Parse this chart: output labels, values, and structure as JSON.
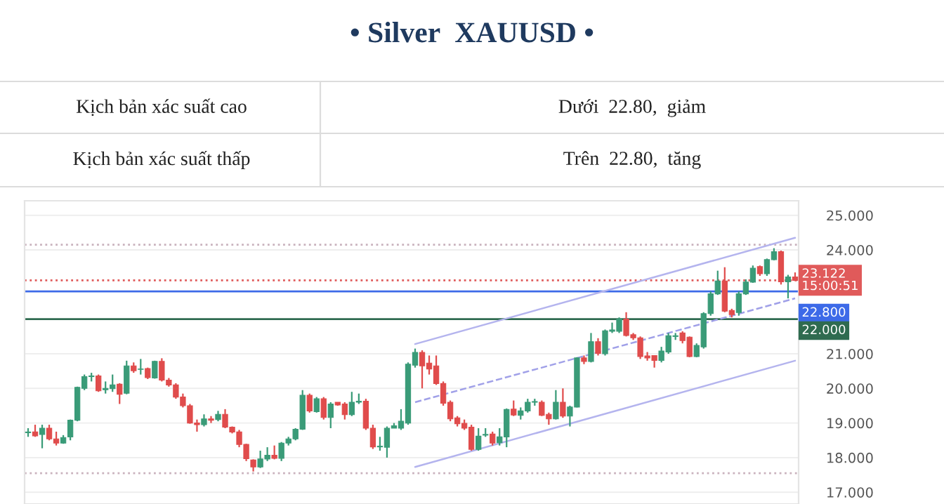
{
  "chart_data": {
    "type": "candlestick",
    "title": "• Silver  XAUUSD •",
    "annotations": [
      "Kịch bản xác suất cao",
      "Dưới  22.80,  giảm",
      "Kịch bản xác suất thấp",
      "Trên  22.80,  tăng"
    ],
    "categories": [
      null,
      null,
      null,
      null,
      null,
      null,
      null,
      null,
      null,
      null,
      null,
      null,
      null,
      null,
      null,
      null,
      null,
      null,
      null,
      null,
      null,
      null,
      null,
      null,
      null,
      null,
      null,
      null,
      null,
      null,
      null,
      null,
      null,
      null,
      null,
      null,
      null,
      null,
      null,
      null,
      null,
      null,
      null,
      null,
      null,
      null,
      null,
      null,
      null,
      null,
      null,
      null,
      null,
      null,
      null,
      null,
      null,
      null,
      null,
      null,
      null,
      null,
      null,
      null,
      null,
      null,
      null,
      null,
      null,
      null,
      null,
      null,
      null,
      null,
      null,
      null,
      null,
      null,
      null,
      null,
      null,
      null,
      null,
      null,
      null,
      null,
      null,
      null,
      null,
      null,
      null,
      null,
      null,
      null,
      null,
      null,
      null,
      null,
      null,
      null,
      null,
      null,
      null,
      null,
      null,
      null,
      null,
      null,
      null,
      null
    ],
    "ohlc": [
      [
        18.72,
        18.85,
        18.6,
        18.74
      ],
      [
        18.74,
        18.95,
        18.6,
        18.63
      ],
      [
        18.67,
        18.95,
        18.27,
        18.85
      ],
      [
        18.85,
        18.95,
        18.5,
        18.54
      ],
      [
        18.54,
        18.75,
        18.35,
        18.42
      ],
      [
        18.42,
        18.65,
        18.4,
        18.58
      ],
      [
        18.6,
        19.1,
        18.5,
        19.08
      ],
      [
        19.08,
        20.05,
        19.05,
        20.03
      ],
      [
        20.0,
        20.4,
        19.95,
        20.34
      ],
      [
        20.34,
        20.45,
        20.2,
        20.36
      ],
      [
        20.36,
        20.4,
        19.9,
        19.93
      ],
      [
        19.96,
        20.2,
        19.85,
        20.0
      ],
      [
        19.99,
        20.4,
        19.9,
        20.1
      ],
      [
        20.12,
        20.15,
        19.55,
        19.83
      ],
      [
        19.86,
        20.8,
        19.83,
        20.65
      ],
      [
        20.65,
        20.75,
        20.45,
        20.51
      ],
      [
        20.55,
        20.85,
        20.4,
        20.56
      ],
      [
        20.57,
        20.6,
        20.27,
        20.31
      ],
      [
        20.3,
        20.8,
        20.28,
        20.78
      ],
      [
        20.78,
        20.87,
        20.2,
        20.24
      ],
      [
        20.24,
        20.3,
        20.05,
        20.1
      ],
      [
        20.1,
        20.15,
        19.7,
        19.75
      ],
      [
        19.75,
        19.85,
        19.45,
        19.5
      ],
      [
        19.5,
        19.55,
        18.98,
        19.0
      ],
      [
        19.0,
        19.1,
        18.75,
        18.95
      ],
      [
        18.95,
        19.25,
        18.9,
        19.12
      ],
      [
        19.12,
        19.2,
        19.0,
        19.08
      ],
      [
        19.1,
        19.35,
        19.05,
        19.25
      ],
      [
        19.25,
        19.4,
        18.85,
        18.88
      ],
      [
        18.88,
        18.9,
        18.7,
        18.74
      ],
      [
        18.74,
        18.8,
        18.3,
        18.38
      ],
      [
        18.38,
        18.4,
        17.9,
        17.97
      ],
      [
        17.93,
        17.95,
        17.6,
        17.73
      ],
      [
        17.73,
        18.2,
        17.7,
        17.96
      ],
      [
        17.96,
        18.3,
        17.9,
        18.07
      ],
      [
        18.07,
        18.35,
        17.95,
        17.98
      ],
      [
        17.98,
        18.45,
        17.9,
        18.42
      ],
      [
        18.42,
        18.6,
        18.35,
        18.54
      ],
      [
        18.54,
        18.85,
        18.5,
        18.82
      ],
      [
        18.82,
        19.95,
        18.8,
        19.8
      ],
      [
        19.8,
        19.85,
        19.3,
        19.35
      ],
      [
        19.33,
        19.75,
        19.3,
        19.7
      ],
      [
        19.7,
        19.75,
        19.1,
        19.16
      ],
      [
        19.16,
        19.6,
        18.85,
        19.55
      ],
      [
        19.6,
        19.6,
        19.5,
        19.52
      ],
      [
        19.55,
        19.6,
        19.1,
        19.24
      ],
      [
        19.24,
        19.9,
        19.2,
        19.6
      ],
      [
        19.6,
        19.85,
        19.55,
        19.63
      ],
      [
        19.63,
        19.7,
        18.8,
        18.85
      ],
      [
        18.85,
        18.95,
        18.25,
        18.31
      ],
      [
        18.31,
        18.6,
        18.2,
        18.33
      ],
      [
        18.3,
        18.9,
        18.0,
        18.85
      ],
      [
        18.85,
        19.0,
        18.85,
        18.92
      ],
      [
        18.85,
        19.4,
        18.8,
        19.05
      ],
      [
        19.0,
        20.75,
        18.95,
        20.7
      ],
      [
        20.67,
        21.15,
        20.6,
        21.04
      ],
      [
        21.04,
        21.1,
        20.0,
        20.65
      ],
      [
        20.73,
        20.95,
        20.4,
        20.56
      ],
      [
        20.65,
        20.95,
        20.1,
        20.14
      ],
      [
        20.14,
        20.2,
        19.5,
        19.57
      ],
      [
        19.6,
        19.65,
        19.05,
        19.12
      ],
      [
        19.15,
        19.2,
        18.9,
        18.98
      ],
      [
        18.99,
        19.1,
        18.8,
        18.85
      ],
      [
        18.88,
        18.95,
        18.2,
        18.24
      ],
      [
        18.24,
        18.85,
        18.2,
        18.62
      ],
      [
        18.65,
        18.85,
        18.6,
        18.67
      ],
      [
        18.68,
        18.75,
        18.35,
        18.42
      ],
      [
        18.43,
        18.85,
        18.35,
        18.6
      ],
      [
        18.6,
        19.42,
        18.3,
        19.39
      ],
      [
        19.4,
        19.65,
        19.2,
        19.23
      ],
      [
        19.22,
        19.45,
        19.1,
        19.35
      ],
      [
        19.35,
        19.7,
        19.3,
        19.6
      ],
      [
        19.6,
        19.7,
        19.5,
        19.62
      ],
      [
        19.6,
        19.65,
        19.2,
        19.22
      ],
      [
        19.25,
        19.3,
        18.95,
        19.12
      ],
      [
        19.12,
        19.95,
        19.1,
        19.6
      ],
      [
        19.6,
        20.0,
        19.15,
        19.2
      ],
      [
        19.2,
        19.5,
        18.9,
        19.46
      ],
      [
        19.46,
        20.9,
        19.45,
        20.88
      ],
      [
        20.88,
        20.95,
        20.7,
        20.78
      ],
      [
        20.78,
        21.6,
        20.75,
        21.35
      ],
      [
        21.35,
        21.45,
        20.95,
        21.01
      ],
      [
        21.0,
        21.7,
        20.95,
        21.66
      ],
      [
        21.65,
        21.9,
        21.6,
        21.69
      ],
      [
        21.65,
        22.05,
        21.6,
        22.0
      ],
      [
        22.0,
        22.2,
        21.5,
        21.53
      ],
      [
        21.55,
        21.6,
        21.4,
        21.46
      ],
      [
        21.46,
        21.5,
        20.85,
        20.92
      ],
      [
        20.94,
        21.05,
        20.8,
        20.88
      ],
      [
        20.95,
        20.95,
        20.6,
        20.81
      ],
      [
        20.81,
        21.2,
        20.75,
        21.08
      ],
      [
        21.05,
        21.6,
        21.0,
        21.52
      ],
      [
        21.5,
        21.6,
        21.4,
        21.52
      ],
      [
        21.6,
        21.65,
        21.3,
        21.38
      ],
      [
        21.48,
        21.5,
        20.9,
        20.92
      ],
      [
        20.92,
        21.3,
        20.9,
        21.24
      ],
      [
        21.2,
        22.2,
        21.15,
        22.16
      ],
      [
        22.16,
        22.8,
        22.1,
        22.73
      ],
      [
        22.73,
        23.4,
        22.7,
        23.1
      ],
      [
        23.1,
        23.5,
        22.2,
        22.23
      ],
      [
        22.25,
        22.3,
        22.05,
        22.13
      ],
      [
        22.19,
        22.8,
        22.1,
        22.73
      ],
      [
        22.73,
        23.15,
        22.7,
        23.07
      ],
      [
        23.07,
        23.55,
        23.05,
        23.47
      ],
      [
        23.52,
        23.55,
        23.25,
        23.31
      ],
      [
        23.31,
        23.75,
        23.25,
        23.72
      ],
      [
        23.72,
        24.05,
        23.7,
        23.95
      ],
      [
        23.95,
        23.98,
        23.0,
        23.08
      ],
      [
        23.08,
        23.28,
        22.6,
        23.22
      ],
      [
        23.22,
        23.35,
        23.1,
        23.122
      ]
    ],
    "series": [
      {
        "type": "line",
        "color": "#b4b4ee",
        "line_style": "solid",
        "values": [
          null,
          null,
          null,
          null,
          null,
          null,
          null,
          null,
          null,
          null,
          null,
          null,
          null,
          null,
          null,
          null,
          null,
          null,
          null,
          null,
          null,
          null,
          null,
          null,
          null,
          null,
          null,
          null,
          null,
          null,
          null,
          null,
          null,
          null,
          null,
          null,
          null,
          null,
          null,
          null,
          null,
          null,
          null,
          null,
          null,
          null,
          null,
          null,
          null,
          null,
          null,
          null,
          null,
          null,
          null,
          21.28,
          null,
          null,
          null,
          null,
          null,
          null,
          null,
          null,
          null,
          null,
          null,
          null,
          null,
          null,
          null,
          null,
          null,
          null,
          null,
          null,
          null,
          null,
          null,
          null,
          null,
          null,
          null,
          null,
          null,
          null,
          null,
          null,
          null,
          null,
          null,
          null,
          null,
          null,
          null,
          null,
          null,
          null,
          null,
          null,
          null,
          null,
          null,
          null,
          null,
          null,
          null,
          null,
          null,
          24.35
        ]
      },
      {
        "type": "line",
        "color": "#a0a0e8",
        "line_style": "dashed",
        "values": [
          null,
          null,
          null,
          null,
          null,
          null,
          null,
          null,
          null,
          null,
          null,
          null,
          null,
          null,
          null,
          null,
          null,
          null,
          null,
          null,
          null,
          null,
          null,
          null,
          null,
          null,
          null,
          null,
          null,
          null,
          null,
          null,
          null,
          null,
          null,
          null,
          null,
          null,
          null,
          null,
          null,
          null,
          null,
          null,
          null,
          null,
          null,
          null,
          null,
          null,
          null,
          null,
          null,
          null,
          null,
          19.6,
          null,
          null,
          null,
          null,
          null,
          null,
          null,
          null,
          null,
          null,
          null,
          null,
          null,
          null,
          null,
          null,
          null,
          null,
          null,
          null,
          null,
          null,
          null,
          null,
          null,
          null,
          null,
          null,
          null,
          null,
          null,
          null,
          null,
          null,
          null,
          null,
          null,
          null,
          null,
          null,
          null,
          null,
          null,
          null,
          null,
          null,
          null,
          null,
          null,
          null,
          null,
          null,
          null,
          22.6
        ]
      },
      {
        "type": "line",
        "color": "#b4b4ee",
        "line_style": "solid",
        "values": [
          null,
          null,
          null,
          null,
          null,
          null,
          null,
          null,
          null,
          null,
          null,
          null,
          null,
          null,
          null,
          null,
          null,
          null,
          null,
          null,
          null,
          null,
          null,
          null,
          null,
          null,
          null,
          null,
          null,
          null,
          null,
          null,
          null,
          null,
          null,
          null,
          null,
          null,
          null,
          null,
          null,
          null,
          null,
          null,
          null,
          null,
          null,
          null,
          null,
          null,
          null,
          null,
          null,
          null,
          null,
          17.73,
          null,
          null,
          null,
          null,
          null,
          null,
          null,
          null,
          null,
          null,
          null,
          null,
          null,
          null,
          null,
          null,
          null,
          null,
          null,
          null,
          null,
          null,
          null,
          null,
          null,
          null,
          null,
          null,
          null,
          null,
          null,
          null,
          null,
          null,
          null,
          null,
          null,
          null,
          null,
          null,
          null,
          null,
          null,
          null,
          null,
          null,
          null,
          null,
          null,
          null,
          null,
          null,
          null,
          20.8
        ]
      }
    ],
    "ref_lines": [
      {
        "axis": "y",
        "value": 23.122,
        "label": "23.122\n15:00:51",
        "color": "#e05a5a",
        "line_style": "dotted"
      },
      {
        "axis": "y",
        "value": 22.8,
        "label": "22.800",
        "color": "#3d6ae8",
        "line_style": "solid"
      },
      {
        "axis": "y",
        "value": 22.0,
        "label": "22.000",
        "color": "#2f6b50",
        "line_style": "solid"
      },
      {
        "axis": "y",
        "value": 24.15,
        "color": "#c9b2bd",
        "line_style": "dotted"
      },
      {
        "axis": "y",
        "value": 17.55,
        "color": "#c9b2bd",
        "line_style": "dotted"
      }
    ],
    "ylim": [
      16.66,
      25.42
    ],
    "yticks": [
      {
        "value": 17,
        "label": "17.000"
      },
      {
        "value": 18,
        "label": "18.000"
      },
      {
        "value": 19,
        "label": "19.000"
      },
      {
        "value": 20,
        "label": "20.000"
      },
      {
        "value": 21,
        "label": "21.000"
      },
      {
        "value": 24,
        "label": "24.000"
      },
      {
        "value": 25,
        "label": "25.000"
      }
    ],
    "grid": "y",
    "tick_labels": "y"
  }
}
